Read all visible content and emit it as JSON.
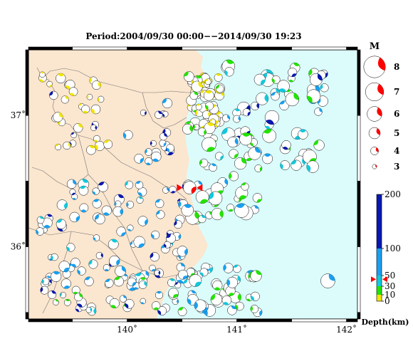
{
  "title": "Period:2004/09/30 00:00−−2014/09/30 19:23",
  "colors": {
    "land": "#fbe6cf",
    "sea": "#dcfcfc",
    "depth_yellow": "#f2e600",
    "depth_green": "#22e400",
    "depth_cyan": "#12c8dc",
    "depth_blue": "#18a0f0",
    "depth_navy": "#0818b0",
    "marker_red": "#ff0000",
    "border": "#000000"
  },
  "map": {
    "lon_range": [
      139.1,
      142.1
    ],
    "lat_range": [
      35.45,
      37.5
    ],
    "lon_ticks": [
      {
        "value": 140,
        "label": "140˚"
      },
      {
        "value": 141,
        "label": "141˚"
      },
      {
        "value": 142,
        "label": "142˚"
      }
    ],
    "lat_ticks": [
      {
        "value": 37,
        "label": "37˚"
      },
      {
        "value": 36,
        "label": "36˚"
      }
    ]
  },
  "magnitude_legend": {
    "title": "M",
    "items": [
      {
        "m": 8,
        "label": "8"
      },
      {
        "m": 7,
        "label": "7"
      },
      {
        "m": 6,
        "label": "6"
      },
      {
        "m": 5,
        "label": "5"
      },
      {
        "m": 4,
        "label": "4"
      },
      {
        "m": 3,
        "label": "3"
      }
    ]
  },
  "depth_scale": {
    "title": "Depth(km)",
    "ticks": [
      {
        "value": 200,
        "label": "200"
      },
      {
        "value": 100,
        "label": "100"
      },
      {
        "value": 50,
        "label": "50"
      },
      {
        "value": 30,
        "label": "30"
      },
      {
        "value": 10,
        "label": "10"
      },
      {
        "value": 0,
        "label": "0"
      }
    ],
    "marker_depth": 43
  },
  "events": {
    "highlight": {
      "lon": 140.57,
      "lat": 36.45,
      "m": 6.2,
      "depth": 43
    }
  }
}
